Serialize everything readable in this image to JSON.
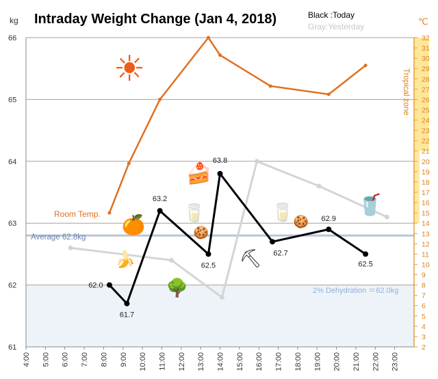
{
  "chart_data": {
    "type": "line",
    "title": "Intraday Weight Change (Jan 4, 2018)",
    "legend": {
      "today": "Black :Today",
      "yesterday": "Gray:Yesterday",
      "placement": "top-right"
    },
    "left_axis": {
      "unit_label": "kg",
      "ylim": [
        61,
        66
      ],
      "ticks": [
        "61",
        "62",
        "63",
        "64",
        "65",
        "66"
      ]
    },
    "right_axis": {
      "unit_label": "℃",
      "ylim": [
        2,
        32
      ],
      "label": "Tropical zone",
      "ticks": [
        "2",
        "3",
        "4",
        "5",
        "6",
        "7",
        "8",
        "9",
        "10",
        "11",
        "12",
        "13",
        "14",
        "15",
        "16",
        "17",
        "18",
        "19",
        "20",
        "21",
        "22",
        "23",
        "24",
        "25",
        "26",
        "27",
        "28",
        "29",
        "30",
        "31",
        "32"
      ]
    },
    "x_axis": {
      "xlim_hours": [
        4,
        24
      ],
      "ticks": [
        "4:00",
        "5:00",
        "6:00",
        "7:00",
        "8:00",
        "9:00",
        "10:00",
        "11:00",
        "12:00",
        "13:00",
        "14:00",
        "15:00",
        "16:00",
        "17:00",
        "18:00",
        "19:00",
        "20:00",
        "21:00",
        "22:00",
        "23:00"
      ]
    },
    "series": [
      {
        "name": "Black :Today",
        "color": "#000000",
        "x_hours": [
          8.3,
          9.2,
          10.9,
          13.4,
          14.0,
          16.7,
          19.6,
          21.5
        ],
        "values": [
          62.0,
          61.7,
          63.2,
          62.5,
          63.8,
          62.7,
          62.9,
          62.5
        ],
        "labels": [
          "62.0",
          "61.7",
          "63.2",
          "62.5",
          "63.8",
          "62.7",
          "62.9",
          "62.5"
        ]
      },
      {
        "name": "Gray:Yesterday",
        "color": "#d4d4d4",
        "x_hours": [
          6.3,
          11.5,
          14.1,
          15.9,
          19.1,
          22.6
        ],
        "values": [
          62.6,
          62.4,
          61.8,
          64.0,
          63.6,
          63.1
        ]
      },
      {
        "name": "Room Temp.",
        "color": "#e07020",
        "axis": "right",
        "x_hours": [
          8.3,
          9.3,
          10.9,
          13.4,
          14.0,
          16.6,
          19.6,
          21.5
        ],
        "values": [
          15.0,
          19.8,
          26.0,
          32.0,
          30.3,
          27.3,
          26.5,
          29.3
        ]
      }
    ],
    "reference_lines": [
      {
        "label": "Average 62.8kg",
        "value": 62.8,
        "color": "#b8c4da"
      }
    ],
    "zones": [
      {
        "label": "2% Dehydration ＝62.0kg",
        "from": 61,
        "to": 62,
        "color": "#eef3fa",
        "label_color": "#8eb0d8"
      }
    ],
    "annotations": [
      {
        "text": "Room Temp.",
        "color": "#e07020"
      }
    ],
    "icons": [
      {
        "name": "sun",
        "symbol": "☀"
      },
      {
        "name": "orange",
        "symbol": "🍊"
      },
      {
        "name": "banana",
        "symbol": "🍌"
      },
      {
        "name": "cake",
        "symbol": "🍰"
      },
      {
        "name": "water-glass",
        "symbol": "🥛"
      },
      {
        "name": "cookies",
        "symbol": "🍪"
      },
      {
        "name": "gardening",
        "symbol": "🌳"
      },
      {
        "name": "shoveling",
        "symbol": "⛏"
      },
      {
        "name": "yogurt-cup",
        "symbol": "🥤"
      }
    ],
    "grid": true
  }
}
